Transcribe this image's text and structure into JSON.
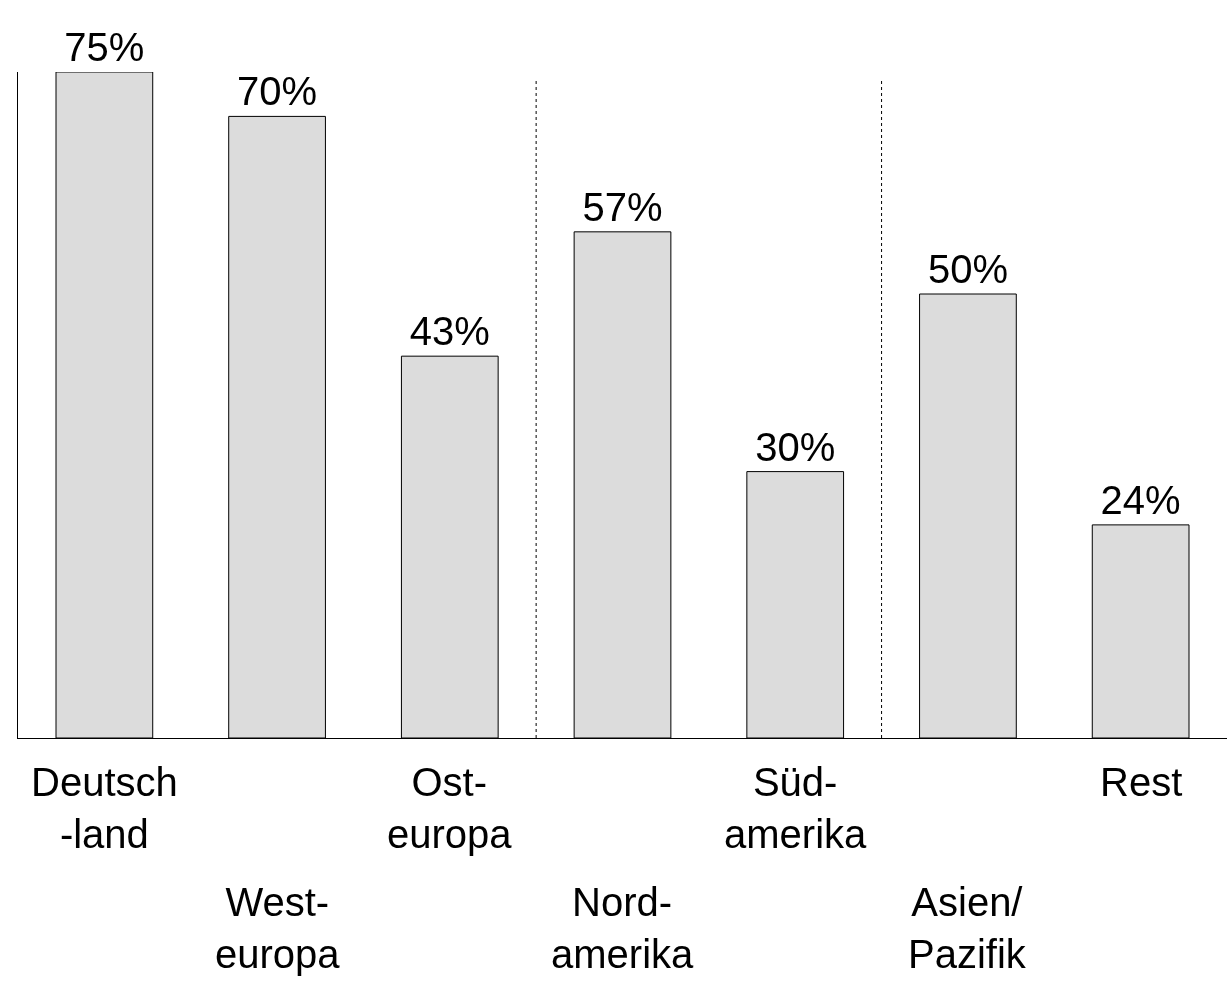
{
  "chart_data": {
    "type": "bar",
    "categories": [
      "Deutsch\n-land",
      "West-\neuropa",
      "Ost-\neuropa",
      "Nord-\namerika",
      "Süd-\namerika",
      "Asien/\nPazifik",
      "Rest"
    ],
    "values": [
      75,
      70,
      43,
      57,
      30,
      50,
      24
    ],
    "value_labels": [
      "75%",
      "70%",
      "43%",
      "57%",
      "30%",
      "50%",
      "24%"
    ],
    "color": "#dcdcdc",
    "ylim": [
      0,
      75
    ],
    "tick_labels": "x"
  }
}
